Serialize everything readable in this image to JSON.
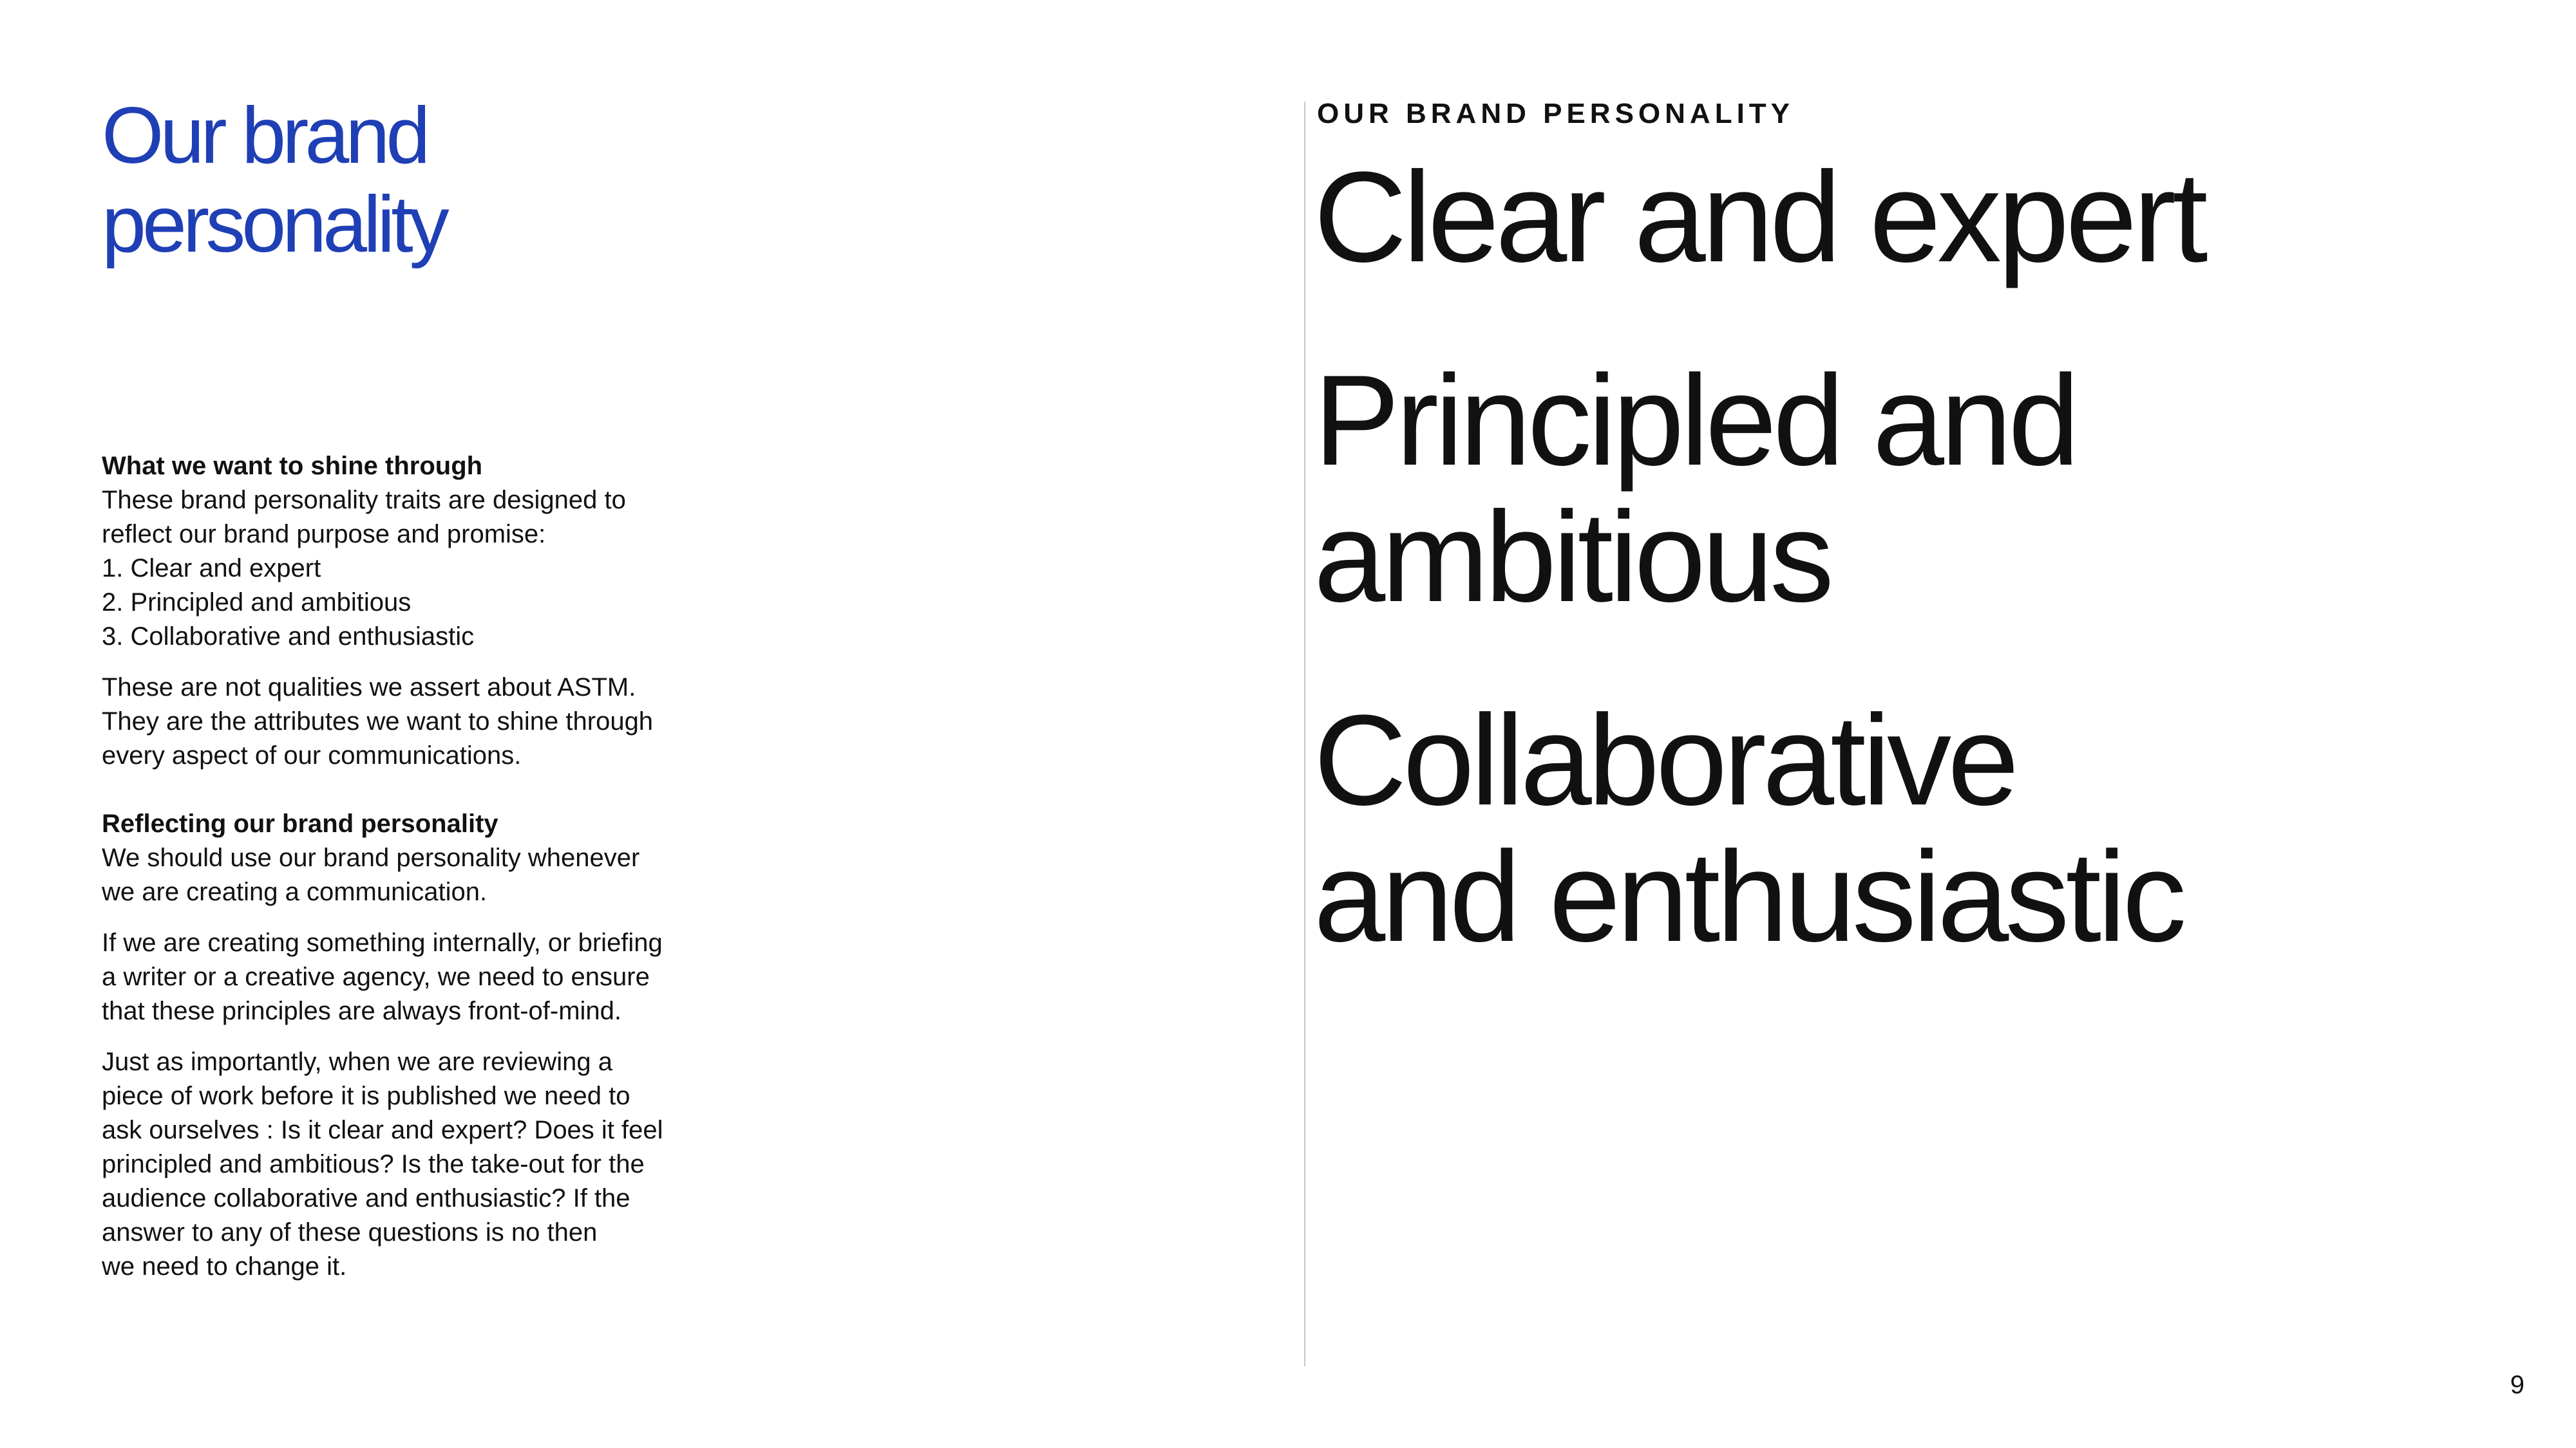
{
  "title": {
    "line1": "Our brand",
    "line2": "personality"
  },
  "left_column": {
    "section1": {
      "heading": "What we want to shine through",
      "intro_line1": "These brand personality traits are designed to",
      "intro_line2": "reflect our brand purpose and promise:",
      "list": [
        "1. Clear and expert",
        "2. Principled and ambitious",
        "3. Collaborative and enthusiastic"
      ],
      "para_lines": [
        "These are not qualities we assert about ASTM.",
        "They are the attributes we want to shine through",
        "every aspect of our communications."
      ]
    },
    "section2": {
      "heading": "Reflecting our brand personality",
      "para1_lines": [
        "We should use our brand personality whenever",
        "we are creating a communication."
      ],
      "para2_lines": [
        "If we are creating something internally, or briefing",
        "a writer or a creative agency, we need to ensure",
        "that these principles are always front-of-mind."
      ],
      "para3_lines": [
        "Just as importantly, when we are reviewing a",
        "piece of work before it is published we need to",
        "ask ourselves : Is it clear and expert? Does it feel",
        "principled and ambitious? Is the take-out for the",
        "audience collaborative and enthusiastic? If the",
        "answer to any of these questions is no then",
        "we need to change it."
      ]
    }
  },
  "right_column": {
    "eyebrow": "OUR BRAND PERSONALITY",
    "traits": [
      {
        "lines": [
          "Clear and expert"
        ]
      },
      {
        "lines": [
          "Principled and",
          "ambitious"
        ]
      },
      {
        "lines": [
          "Collaborative",
          "and enthusiastic"
        ]
      }
    ]
  },
  "page_number": "9",
  "colors": {
    "title_blue": "#1f3fb5",
    "text": "#111111",
    "divider": "#c8c8c8"
  }
}
